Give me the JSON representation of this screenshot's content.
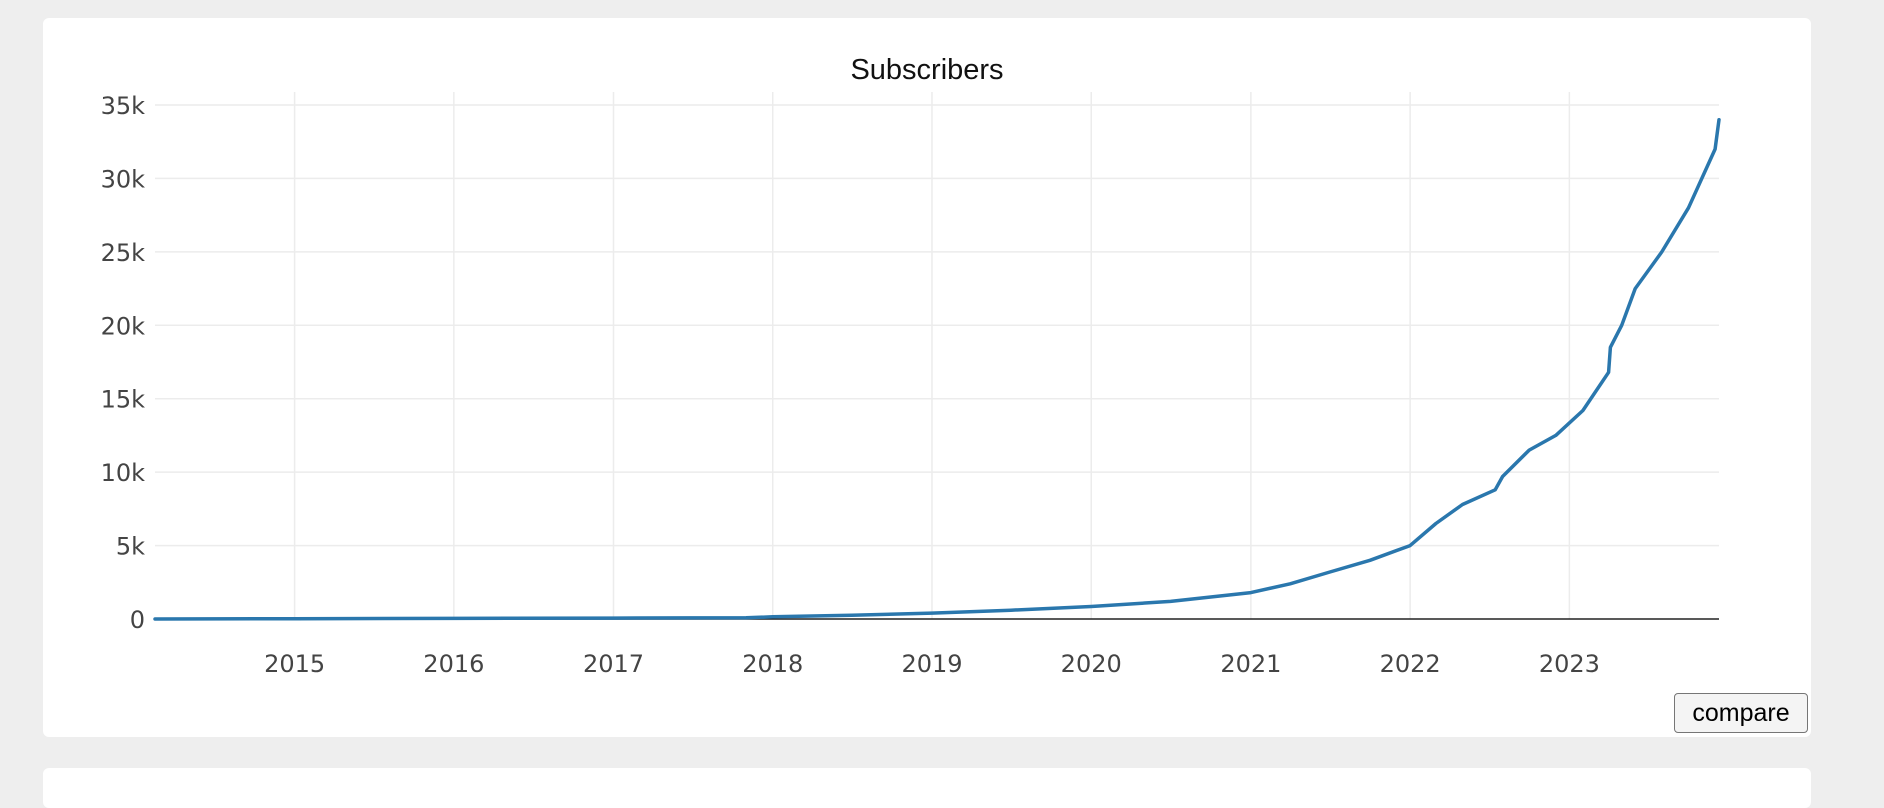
{
  "colors": {
    "line": "#2a77ad",
    "grid": "#ececec",
    "axis": "#222222",
    "tick_text": "#444444",
    "title": "#111111"
  },
  "compare_label": "compare",
  "chart_data": {
    "type": "line",
    "title": "Subscribers",
    "xlabel": "",
    "ylabel": "",
    "x_tick_labels": [
      "2015",
      "2016",
      "2017",
      "2018",
      "2019",
      "2020",
      "2021",
      "2022",
      "2023"
    ],
    "y_tick_labels": [
      "0",
      "5k",
      "10k",
      "15k",
      "20k",
      "25k",
      "30k",
      "35k"
    ],
    "y_ticks": [
      0,
      5000,
      10000,
      15000,
      20000,
      25000,
      30000,
      35000
    ],
    "xlim": [
      "2014-02-15",
      "2023-12-10"
    ],
    "ylim": [
      0,
      35000
    ],
    "grid": true,
    "series": [
      {
        "x": [
          "2014-02-15",
          "2015-01-01",
          "2016-01-01",
          "2017-01-01",
          "2017-11-01",
          "2018-01-01",
          "2018-07-01",
          "2019-01-01",
          "2019-07-01",
          "2020-01-01",
          "2020-07-01",
          "2021-01-01",
          "2021-04-01",
          "2021-07-01",
          "2021-10-01",
          "2022-01-01",
          "2022-03-01",
          "2022-05-01",
          "2022-07-15",
          "2022-08-01",
          "2022-10-01",
          "2022-12-01",
          "2023-02-01",
          "2023-04-01",
          "2023-04-05",
          "2023-05-01",
          "2023-06-01",
          "2023-08-01",
          "2023-10-01",
          "2023-12-01",
          "2023-12-10"
        ],
        "y": [
          0,
          20,
          40,
          60,
          80,
          150,
          250,
          400,
          600,
          850,
          1200,
          1800,
          2400,
          3200,
          4000,
          5000,
          6500,
          7800,
          8800,
          9700,
          11500,
          12500,
          14200,
          16800,
          18500,
          20000,
          22500,
          25000,
          28000,
          32000,
          34000
        ]
      }
    ]
  }
}
